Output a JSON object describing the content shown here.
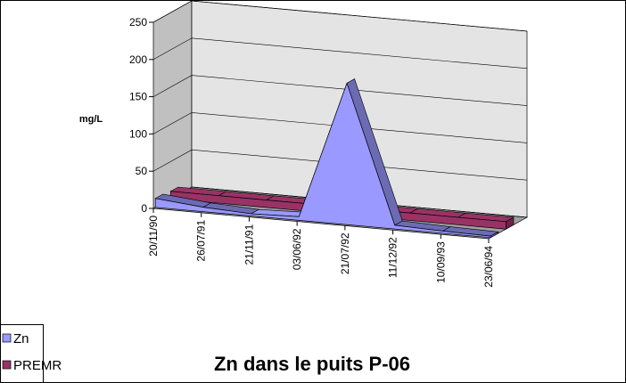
{
  "chart_data": {
    "type": "area3d",
    "title": "Zn dans le puits P-06",
    "y_label": "mg/L",
    "categories": [
      "20/11/90",
      "26/07/91",
      "21/11/91",
      "03/06/92",
      "21/07/92",
      "11/12/92",
      "10/09/93",
      "23/06/94"
    ],
    "series": [
      {
        "name": "Zn",
        "color": "#9999ff",
        "values": [
          12,
          6,
          3,
          5,
          190,
          5,
          3,
          2
        ]
      },
      {
        "name": "PREMR",
        "color": "#993366",
        "values": [
          10,
          10,
          10,
          10,
          10,
          10,
          10,
          10
        ]
      }
    ],
    "ylim": [
      0,
      250
    ],
    "yticks": [
      0,
      50,
      100,
      150,
      200,
      250
    ],
    "grid": true,
    "legend": "bottom-left"
  }
}
